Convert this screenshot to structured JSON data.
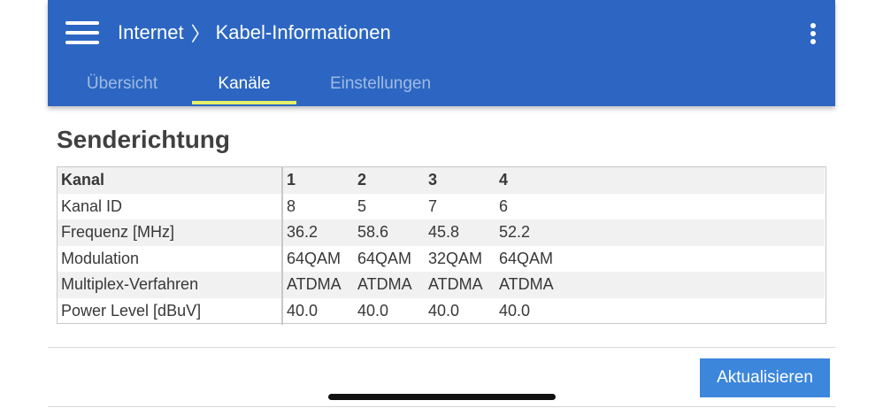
{
  "header": {
    "breadcrumb": [
      "Internet",
      "Kabel-Informationen"
    ],
    "separator": "〉",
    "colors": {
      "background": "#2c66c2",
      "tab_indicator": "#e6ef6a"
    },
    "icons": {
      "menu": "hamburger-menu-icon",
      "more": "kebab-menu-icon"
    }
  },
  "tabs": [
    {
      "label": "Übersicht",
      "active": false
    },
    {
      "label": "Kanäle",
      "active": true
    },
    {
      "label": "Einstellungen",
      "active": false
    }
  ],
  "section": {
    "title": "Senderichtung"
  },
  "table": {
    "header": {
      "label": "Kanal",
      "values": [
        "1",
        "2",
        "3",
        "4"
      ]
    },
    "rows": [
      {
        "label": "Kanal ID",
        "values": [
          "8",
          "5",
          "7",
          "6"
        ]
      },
      {
        "label": "Frequenz [MHz]",
        "values": [
          "36.2",
          "58.6",
          "45.8",
          "52.2"
        ]
      },
      {
        "label": "Modulation",
        "values": [
          "64QAM",
          "64QAM",
          "32QAM",
          "64QAM"
        ]
      },
      {
        "label": "Multiplex-Verfahren",
        "values": [
          "ATDMA",
          "ATDMA",
          "ATDMA",
          "ATDMA"
        ]
      },
      {
        "label": "Power Level [dBuV]",
        "values": [
          "40.0",
          "40.0",
          "40.0",
          "40.0"
        ]
      }
    ]
  },
  "footer": {
    "refresh_label": "Aktualisieren",
    "button_color": "#3c86dc"
  }
}
